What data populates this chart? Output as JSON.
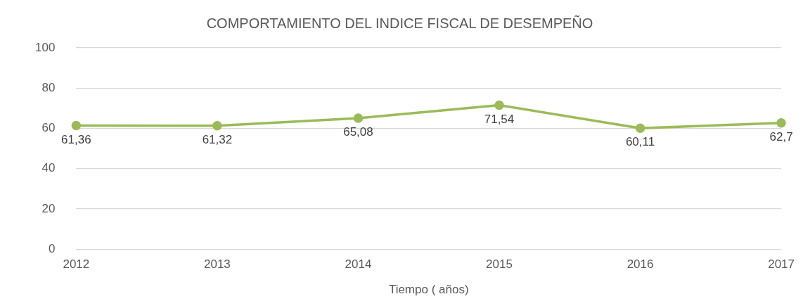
{
  "chart_data": {
    "type": "line",
    "title": "COMPORTAMIENTO DEL INDICE FISCAL DE DESEMPEÑO",
    "xlabel": "Tiempo ( años)",
    "categories": [
      "2012",
      "2013",
      "2014",
      "2015",
      "2016",
      "2017"
    ],
    "series": [
      {
        "color": "#9bbb59",
        "values": [
          61.36,
          61.32,
          65.08,
          71.54,
          60.11,
          62.7
        ],
        "value_labels": [
          "61,36",
          "61,32",
          "65,08",
          "71,54",
          "60,11",
          "62,7"
        ]
      }
    ],
    "ylim": [
      0,
      100
    ],
    "yticks": [
      0,
      20,
      40,
      60,
      80,
      100
    ],
    "grid": "y",
    "legend": false,
    "marker": "circle",
    "line_style": "solid"
  }
}
